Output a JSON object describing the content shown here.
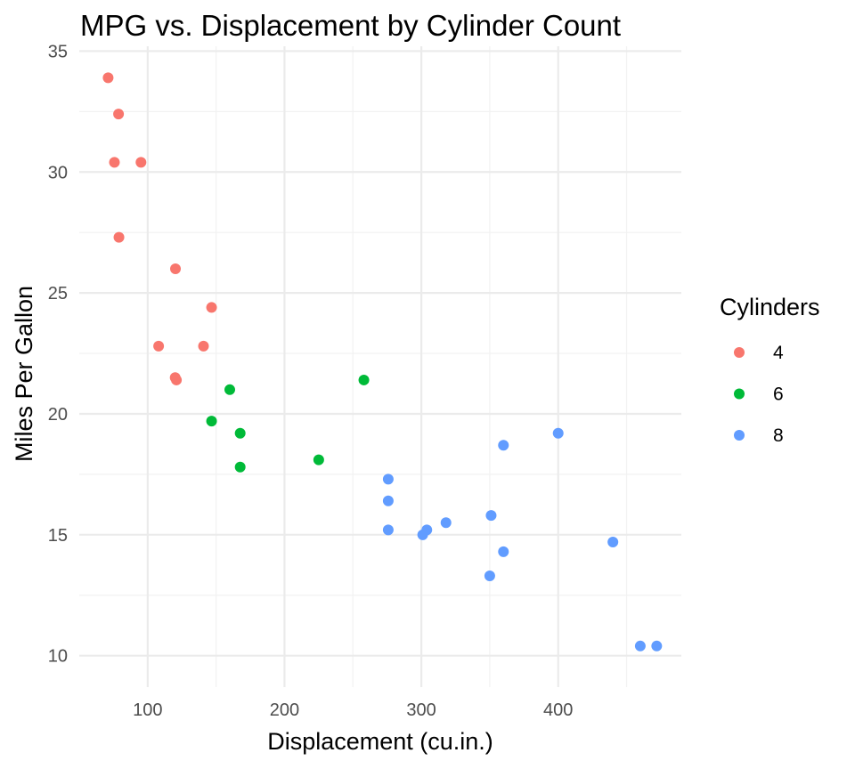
{
  "chart_data": {
    "type": "scatter",
    "title": "MPG vs. Displacement by Cylinder Count",
    "xlabel": "Displacement (cu.in.)",
    "ylabel": "Miles Per Gallon",
    "xlim": [
      50,
      490
    ],
    "ylim": [
      8.7,
      35.2
    ],
    "x_ticks": [
      100,
      200,
      300,
      400
    ],
    "y_ticks": [
      10,
      15,
      20,
      25,
      30,
      35
    ],
    "grid": true,
    "legend": {
      "title": "Cylinders",
      "placement": "right"
    },
    "series": [
      {
        "name": "4",
        "color": "#F8766D",
        "points": [
          [
            71.1,
            33.9
          ],
          [
            78.7,
            32.4
          ],
          [
            75.7,
            30.4
          ],
          [
            95.1,
            30.4
          ],
          [
            79,
            27.3
          ],
          [
            120.3,
            26
          ],
          [
            146.7,
            24.4
          ],
          [
            108,
            22.8
          ],
          [
            140.8,
            22.8
          ],
          [
            120.1,
            21.5
          ],
          [
            121,
            21.4
          ]
        ]
      },
      {
        "name": "6",
        "color": "#00BA38",
        "points": [
          [
            258,
            21.4
          ],
          [
            160,
            21
          ],
          [
            146.7,
            19.7
          ],
          [
            167.6,
            19.2
          ],
          [
            225,
            18.1
          ],
          [
            167.6,
            17.8
          ]
        ]
      },
      {
        "name": "8",
        "color": "#619CFF",
        "points": [
          [
            400,
            19.2
          ],
          [
            360,
            18.7
          ],
          [
            275.8,
            17.3
          ],
          [
            275.8,
            16.4
          ],
          [
            351,
            15.8
          ],
          [
            318,
            15.5
          ],
          [
            304,
            15.2
          ],
          [
            275.8,
            15.2
          ],
          [
            301,
            15
          ],
          [
            440,
            14.7
          ],
          [
            360,
            14.3
          ],
          [
            350,
            13.3
          ],
          [
            460,
            10.4
          ],
          [
            472,
            10.4
          ]
        ]
      }
    ]
  }
}
